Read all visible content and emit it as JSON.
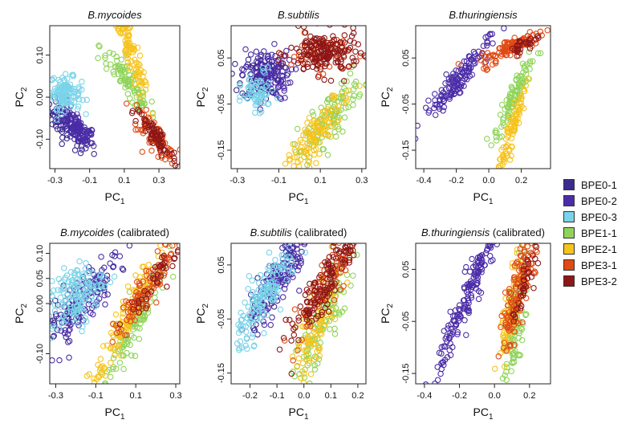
{
  "chart_data": [
    {
      "type": "scatter",
      "title": "B.mycoides",
      "title_suffix": "",
      "xlabel": "PC",
      "xlabel_sub": "1",
      "ylabel": "PC",
      "ylabel_sub": "2",
      "xlim": [
        -0.33,
        0.42
      ],
      "ylim": [
        -0.17,
        0.17
      ],
      "xticks": [
        -0.3,
        -0.1,
        0.1,
        0.3
      ],
      "xtick_labels": [
        "-0.3",
        "-0.1",
        "0.1",
        "0.3"
      ],
      "yticks": [
        -0.1,
        0.0,
        0.1
      ],
      "ytick_labels": [
        "-0.10",
        "0.00",
        "0.10"
      ],
      "series": [
        {
          "name": "BPE0-1",
          "cx": -0.22,
          "cy": -0.07,
          "angle_deg": -20,
          "sx": 0.075,
          "sy": 0.02,
          "n": 85
        },
        {
          "name": "BPE0-2",
          "cx": -0.18,
          "cy": -0.07,
          "angle_deg": -22,
          "sx": 0.06,
          "sy": 0.018,
          "n": 95
        },
        {
          "name": "BPE0-3",
          "cx": -0.24,
          "cy": 0.01,
          "angle_deg": -5,
          "sx": 0.045,
          "sy": 0.02,
          "n": 115
        },
        {
          "name": "BPE1-1",
          "cx": 0.12,
          "cy": 0.035,
          "angle_deg": -28,
          "sx": 0.09,
          "sy": 0.016,
          "n": 95
        },
        {
          "name": "BPE2-1",
          "cx": 0.13,
          "cy": 0.115,
          "angle_deg": -52,
          "sx": 0.085,
          "sy": 0.016,
          "n": 110
        },
        {
          "name": "BPE3-1",
          "cx": 0.27,
          "cy": -0.09,
          "angle_deg": -25,
          "sx": 0.075,
          "sy": 0.016,
          "n": 75
        },
        {
          "name": "BPE3-2",
          "cx": 0.28,
          "cy": -0.095,
          "angle_deg": -25,
          "sx": 0.07,
          "sy": 0.014,
          "n": 70
        }
      ]
    },
    {
      "type": "scatter",
      "title": "B.subtilis",
      "title_suffix": "",
      "xlabel": "PC",
      "xlabel_sub": "1",
      "ylabel": "PC",
      "ylabel_sub": "2",
      "xlim": [
        -0.33,
        0.32
      ],
      "ylim": [
        -0.19,
        0.12
      ],
      "xticks": [
        -0.3,
        -0.1,
        0.1,
        0.3
      ],
      "xtick_labels": [
        "-0.3",
        "-0.1",
        "0.1",
        "0.3"
      ],
      "yticks": [
        -0.15,
        -0.05,
        0.05
      ],
      "ytick_labels": [
        "-0.15",
        "-0.05",
        "0.05"
      ],
      "series": [
        {
          "name": "BPE0-1",
          "cx": -0.18,
          "cy": 0.01,
          "angle_deg": 0,
          "sx": 0.05,
          "sy": 0.025,
          "n": 90
        },
        {
          "name": "BPE0-2",
          "cx": -0.16,
          "cy": 0.015,
          "angle_deg": 0,
          "sx": 0.06,
          "sy": 0.028,
          "n": 100
        },
        {
          "name": "BPE0-3",
          "cx": -0.2,
          "cy": -0.03,
          "angle_deg": 10,
          "sx": 0.04,
          "sy": 0.025,
          "n": 70
        },
        {
          "name": "BPE1-1",
          "cx": 0.14,
          "cy": -0.08,
          "angle_deg": 28,
          "sx": 0.09,
          "sy": 0.022,
          "n": 120
        },
        {
          "name": "BPE2-1",
          "cx": 0.09,
          "cy": -0.11,
          "angle_deg": 32,
          "sx": 0.085,
          "sy": 0.02,
          "n": 120
        },
        {
          "name": "BPE3-1",
          "cx": 0.1,
          "cy": 0.06,
          "angle_deg": 0,
          "sx": 0.07,
          "sy": 0.02,
          "n": 60
        },
        {
          "name": "BPE3-2",
          "cx": 0.12,
          "cy": 0.06,
          "angle_deg": 0,
          "sx": 0.085,
          "sy": 0.024,
          "n": 170
        }
      ]
    },
    {
      "type": "scatter",
      "title": "B.thuringiensis",
      "title_suffix": "",
      "xlabel": "PC",
      "xlabel_sub": "1",
      "ylabel": "PC",
      "ylabel_sub": "2",
      "xlim": [
        -0.45,
        0.38
      ],
      "ylim": [
        -0.19,
        0.12
      ],
      "xticks": [
        -0.4,
        -0.2,
        0.0,
        0.2
      ],
      "xtick_labels": [
        "-0.4",
        "-0.2",
        "0.0",
        "0.2"
      ],
      "yticks": [
        -0.15,
        -0.05,
        0.05
      ],
      "ytick_labels": [
        "-0.15",
        "-0.05",
        "0.05"
      ],
      "series": [
        {
          "name": "BPE0-2",
          "cx": -0.2,
          "cy": 0.0,
          "angle_deg": 22,
          "sx": 0.11,
          "sy": 0.014,
          "n": 140
        },
        {
          "name": "BPE1-1",
          "cx": 0.15,
          "cy": -0.04,
          "angle_deg": 35,
          "sx": 0.07,
          "sy": 0.014,
          "n": 100
        },
        {
          "name": "BPE2-1",
          "cx": 0.13,
          "cy": -0.12,
          "angle_deg": 50,
          "sx": 0.075,
          "sy": 0.014,
          "n": 100
        },
        {
          "name": "BPE3-1",
          "cx": 0.15,
          "cy": 0.075,
          "angle_deg": 10,
          "sx": 0.1,
          "sy": 0.01,
          "n": 110
        },
        {
          "name": "BPE3-2",
          "cx": 0.22,
          "cy": 0.08,
          "angle_deg": 10,
          "sx": 0.05,
          "sy": 0.008,
          "n": 30
        }
      ]
    },
    {
      "type": "scatter",
      "title": "B.mycoides",
      "title_suffix": " (calibrated)",
      "xlabel": "PC",
      "xlabel_sub": "1",
      "ylabel": "PC",
      "ylabel_sub": "2",
      "xlim": [
        -0.33,
        0.32
      ],
      "ylim": [
        -0.16,
        0.12
      ],
      "xticks": [
        -0.3,
        -0.1,
        0.1,
        0.3
      ],
      "xtick_labels": [
        "-0.3",
        "-0.1",
        "0.1",
        "0.3"
      ],
      "yticks": [
        -0.1,
        0.0,
        0.05,
        0.1
      ],
      "ytick_labels": [
        "-0.10",
        "0.00",
        "0.05",
        "0.10"
      ],
      "series": [
        {
          "name": "BPE0-1",
          "cx": -0.2,
          "cy": 0.0,
          "angle_deg": 20,
          "sx": 0.09,
          "sy": 0.022,
          "n": 60
        },
        {
          "name": "BPE0-2",
          "cx": -0.17,
          "cy": 0.005,
          "angle_deg": 25,
          "sx": 0.1,
          "sy": 0.025,
          "n": 100
        },
        {
          "name": "BPE0-3",
          "cx": -0.2,
          "cy": 0.015,
          "angle_deg": 15,
          "sx": 0.07,
          "sy": 0.03,
          "n": 150
        },
        {
          "name": "BPE1-1",
          "cx": 0.08,
          "cy": -0.05,
          "angle_deg": 38,
          "sx": 0.1,
          "sy": 0.018,
          "n": 120
        },
        {
          "name": "BPE2-1",
          "cx": 0.04,
          "cy": -0.04,
          "angle_deg": 40,
          "sx": 0.1,
          "sy": 0.018,
          "n": 120
        },
        {
          "name": "BPE3-1",
          "cx": 0.17,
          "cy": 0.04,
          "angle_deg": 30,
          "sx": 0.1,
          "sy": 0.016,
          "n": 110
        },
        {
          "name": "BPE3-2",
          "cx": 0.19,
          "cy": 0.045,
          "angle_deg": 30,
          "sx": 0.08,
          "sy": 0.014,
          "n": 40
        }
      ]
    },
    {
      "type": "scatter",
      "title": "B.subtilis",
      "title_suffix": " (calibrated)",
      "xlabel": "PC",
      "xlabel_sub": "1",
      "ylabel": "PC",
      "ylabel_sub": "2",
      "xlim": [
        -0.27,
        0.23
      ],
      "ylim": [
        -0.17,
        0.09
      ],
      "xticks": [
        -0.2,
        -0.1,
        0.0,
        0.1,
        0.2
      ],
      "xtick_labels": [
        "-0.2",
        "-0.1",
        "0.0",
        "0.1",
        "0.2"
      ],
      "yticks": [
        -0.15,
        -0.05,
        0.05
      ],
      "ytick_labels": [
        "-0.15",
        "-0.05",
        "0.05"
      ],
      "series": [
        {
          "name": "BPE0-1",
          "cx": -0.12,
          "cy": 0.01,
          "angle_deg": 38,
          "sx": 0.07,
          "sy": 0.018,
          "n": 60
        },
        {
          "name": "BPE0-2",
          "cx": -0.09,
          "cy": 0.025,
          "angle_deg": 38,
          "sx": 0.07,
          "sy": 0.02,
          "n": 100
        },
        {
          "name": "BPE0-3",
          "cx": -0.14,
          "cy": -0.005,
          "angle_deg": 38,
          "sx": 0.07,
          "sy": 0.02,
          "n": 150
        },
        {
          "name": "BPE1-1",
          "cx": 0.07,
          "cy": -0.06,
          "angle_deg": 50,
          "sx": 0.08,
          "sy": 0.022,
          "n": 110
        },
        {
          "name": "BPE2-1",
          "cx": 0.04,
          "cy": -0.065,
          "angle_deg": 52,
          "sx": 0.08,
          "sy": 0.022,
          "n": 110
        },
        {
          "name": "BPE3-1",
          "cx": 0.09,
          "cy": 0.02,
          "angle_deg": 38,
          "sx": 0.08,
          "sy": 0.018,
          "n": 80
        },
        {
          "name": "BPE3-2",
          "cx": 0.08,
          "cy": 0.015,
          "angle_deg": 38,
          "sx": 0.09,
          "sy": 0.02,
          "n": 150
        }
      ]
    },
    {
      "type": "scatter",
      "title": "B.thuringiensis",
      "title_suffix": " (calibrated)",
      "xlabel": "PC",
      "xlabel_sub": "1",
      "ylabel": "PC",
      "ylabel_sub": "2",
      "xlim": [
        -0.45,
        0.32
      ],
      "ylim": [
        -0.17,
        0.1
      ],
      "xticks": [
        -0.4,
        -0.2,
        0.0,
        0.2
      ],
      "xtick_labels": [
        "-0.4",
        "-0.2",
        "0.0",
        "0.2"
      ],
      "yticks": [
        -0.15,
        -0.05,
        0.05
      ],
      "ytick_labels": [
        "-0.15",
        "-0.05",
        "0.05"
      ],
      "series": [
        {
          "name": "BPE0-2",
          "cx": -0.15,
          "cy": 0.0,
          "angle_deg": 40,
          "sx": 0.14,
          "sy": 0.018,
          "n": 190
        },
        {
          "name": "BPE1-1",
          "cx": 0.12,
          "cy": -0.05,
          "angle_deg": 70,
          "sx": 0.06,
          "sy": 0.022,
          "n": 110
        },
        {
          "name": "BPE2-1",
          "cx": 0.1,
          "cy": -0.02,
          "angle_deg": 60,
          "sx": 0.07,
          "sy": 0.02,
          "n": 90
        },
        {
          "name": "BPE3-1",
          "cx": 0.15,
          "cy": 0.03,
          "angle_deg": 50,
          "sx": 0.09,
          "sy": 0.022,
          "n": 150
        },
        {
          "name": "BPE3-2",
          "cx": 0.18,
          "cy": 0.035,
          "angle_deg": 50,
          "sx": 0.06,
          "sy": 0.016,
          "n": 40
        }
      ]
    }
  ],
  "legend": {
    "items": [
      {
        "label": "BPE0-1",
        "color": "#3b2a8f"
      },
      {
        "label": "BPE0-2",
        "color": "#4b2ca8"
      },
      {
        "label": "BPE0-3",
        "color": "#7ad3e8"
      },
      {
        "label": "BPE1-1",
        "color": "#8fd45a"
      },
      {
        "label": "BPE2-1",
        "color": "#f6c31c"
      },
      {
        "label": "BPE3-1",
        "color": "#e04a14"
      },
      {
        "label": "BPE3-2",
        "color": "#8e1616"
      }
    ]
  }
}
